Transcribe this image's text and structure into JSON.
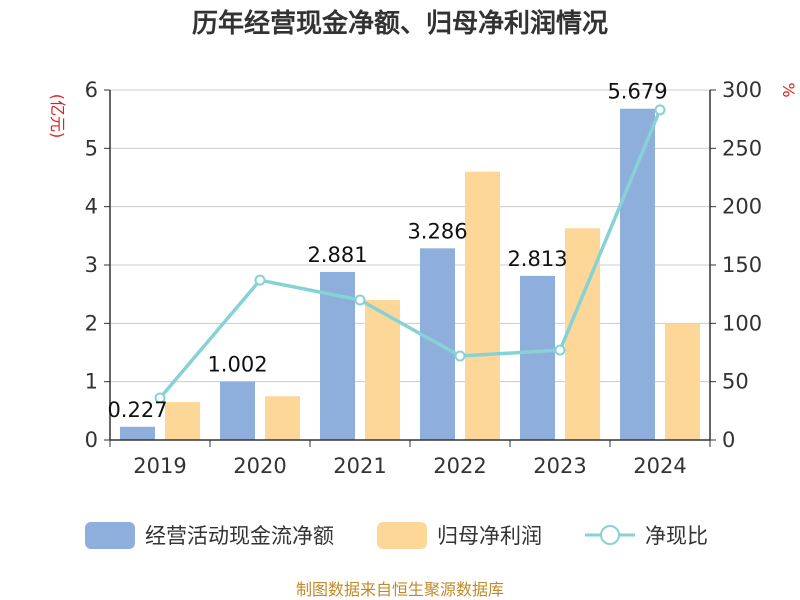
{
  "chart_data": {
    "type": "bar",
    "title": "历年经营现金净额、归母净利润情况",
    "categories": [
      "2019",
      "2020",
      "2021",
      "2022",
      "2023",
      "2024"
    ],
    "left_axis": {
      "unit": "(亿元)",
      "ylim": [
        0,
        6
      ],
      "ticks": [
        0,
        1,
        2,
        3,
        4,
        5,
        6
      ]
    },
    "right_axis": {
      "unit": "%",
      "ylim": [
        0,
        300
      ],
      "ticks": [
        0,
        50,
        100,
        150,
        200,
        250,
        300
      ]
    },
    "series": [
      {
        "name": "经营活动现金流净额",
        "type": "bar",
        "axis": "left",
        "color": "#8eaedb",
        "values": [
          0.227,
          1.002,
          2.881,
          3.286,
          2.813,
          5.679
        ],
        "labels": [
          "0.227",
          "1.002",
          "2.881",
          "3.286",
          "2.813",
          "5.679"
        ]
      },
      {
        "name": "归母净利润",
        "type": "bar",
        "axis": "left",
        "color": "#fdd798",
        "values": [
          0.65,
          0.75,
          2.4,
          4.6,
          3.63,
          2.0
        ]
      },
      {
        "name": "净现比",
        "type": "line",
        "axis": "right",
        "color": "#86d2d4",
        "values": [
          36,
          137,
          120,
          72,
          77,
          283
        ]
      }
    ],
    "grid": true,
    "legend_position": "bottom"
  },
  "source": "制图数据来自恒生聚源数据库"
}
